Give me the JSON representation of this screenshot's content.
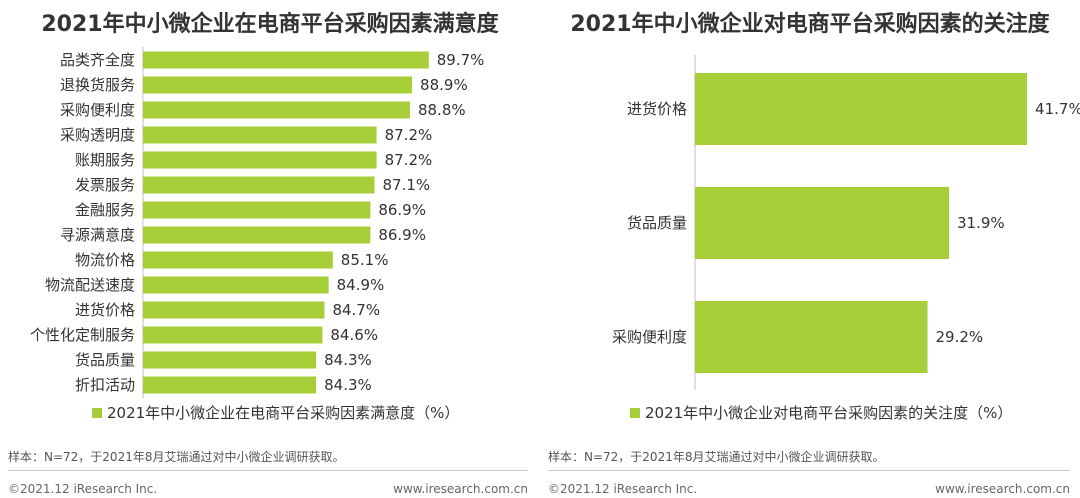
{
  "charts": [
    {
      "title": "2021年中小微企业在电商平台采购因素满意度",
      "legend": "2021年中小微企业在电商平台采购因素满意度（%）",
      "source": "样本：N=72，于2021年8月艾瑞通过对中小微企业调研获取。",
      "copyright": "©2021.12 iResearch Inc.",
      "website": "www.iresearch.com.cn"
    },
    {
      "title": "2021年中小微企业对电商平台采购因素的关注度",
      "legend": "2021年中小微企业对电商平台采购因素的关注度（%）",
      "source": "样本：N=72，于2021年8月艾瑞通过对中小微企业调研获取。",
      "copyright": "©2021.12 iResearch Inc.",
      "website": "www.iresearch.com.cn"
    }
  ],
  "chart_data": [
    {
      "type": "bar",
      "orientation": "horizontal",
      "title": "2021年中小微企业在电商平台采购因素满意度",
      "categories": [
        "品类齐全度",
        "退换货服务",
        "采购便利度",
        "采购透明度",
        "账期服务",
        "发票服务",
        "金融服务",
        "寻源满意度",
        "物流价格",
        "物流配送速度",
        "进货价格",
        "个性化定制服务",
        "货品质量",
        "折扣活动"
      ],
      "series": [
        {
          "name": "2021年中小微企业在电商平台采购因素满意度（%）",
          "values": [
            89.7,
            88.9,
            88.8,
            87.2,
            87.2,
            87.1,
            86.9,
            86.9,
            85.1,
            84.9,
            84.7,
            84.6,
            84.3,
            84.3
          ]
        }
      ],
      "value_labels": [
        "89.7%",
        "88.9%",
        "88.8%",
        "87.2%",
        "87.2%",
        "87.1%",
        "86.9%",
        "86.9%",
        "85.1%",
        "84.9%",
        "84.7%",
        "84.6%",
        "84.3%",
        "84.3%"
      ],
      "axis_min": 76,
      "axis_max": 90,
      "color": "#a6ce39",
      "legend_position": "bottom"
    },
    {
      "type": "bar",
      "orientation": "horizontal",
      "title": "2021年中小微企业对电商平台采购因素的关注度",
      "categories": [
        "进货价格",
        "货品质量",
        "采购便利度"
      ],
      "series": [
        {
          "name": "2021年中小微企业对电商平台采购因素的关注度（%）",
          "values": [
            41.7,
            31.9,
            29.2
          ]
        }
      ],
      "value_labels": [
        "41.7%",
        "31.9%",
        "29.2%"
      ],
      "axis_min": 0,
      "axis_max": 54,
      "color": "#a6ce39",
      "legend_position": "bottom"
    }
  ]
}
